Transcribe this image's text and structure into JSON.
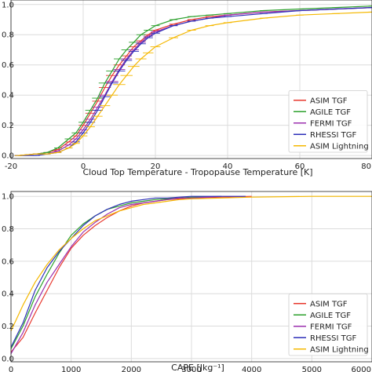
{
  "chart_data": [
    {
      "type": "line",
      "title": "",
      "xlabel": "Cloud Top Temperature - Tropopause Temperature [K]",
      "ylabel": "",
      "xlim": [
        -20,
        80
      ],
      "ylim": [
        -0.02,
        1.03
      ],
      "xticks": [
        "-20",
        "0",
        "20",
        "40",
        "60",
        "80"
      ],
      "xtick_values": [
        -20,
        0,
        20,
        40,
        60,
        80
      ],
      "yticks": [
        "0.0",
        "0.2",
        "0.4",
        "0.6",
        "0.8",
        "1.0"
      ],
      "ytick_values": [
        0,
        0.2,
        0.4,
        0.6,
        0.8,
        1.0
      ],
      "grid": true,
      "legend_position": "lower-right",
      "error_bars": true,
      "series": [
        {
          "name": "ASIM TGF",
          "color": "#e8392e",
          "x": [
            -18,
            -13,
            -10,
            -7,
            -4,
            -2,
            0,
            2,
            4,
            6,
            8,
            10,
            12,
            14,
            16,
            18,
            20,
            25,
            30,
            35,
            40,
            50,
            60,
            70,
            80
          ],
          "y": [
            0.0,
            0.01,
            0.02,
            0.04,
            0.09,
            0.13,
            0.2,
            0.28,
            0.36,
            0.45,
            0.53,
            0.6,
            0.66,
            0.72,
            0.76,
            0.8,
            0.83,
            0.87,
            0.9,
            0.92,
            0.93,
            0.95,
            0.96,
            0.97,
            0.98
          ]
        },
        {
          "name": "AGILE TGF",
          "color": "#2ca02c",
          "x": [
            -18,
            -13,
            -10,
            -7,
            -4,
            -2,
            0,
            2,
            4,
            6,
            8,
            10,
            12,
            14,
            16,
            18,
            20,
            25,
            30,
            35,
            40,
            50,
            60,
            70,
            80
          ],
          "y": [
            0.0,
            0.01,
            0.02,
            0.05,
            0.11,
            0.15,
            0.22,
            0.3,
            0.38,
            0.48,
            0.56,
            0.64,
            0.7,
            0.75,
            0.8,
            0.83,
            0.86,
            0.9,
            0.92,
            0.93,
            0.94,
            0.96,
            0.97,
            0.98,
            0.99
          ]
        },
        {
          "name": "FERMI TGF",
          "color": "#9b2fae",
          "x": [
            -18,
            -13,
            -10,
            -7,
            -4,
            -2,
            0,
            2,
            4,
            6,
            8,
            10,
            12,
            14,
            16,
            18,
            20,
            25,
            30,
            35,
            40,
            50,
            60,
            70,
            80
          ],
          "y": [
            0.0,
            0.01,
            0.01,
            0.03,
            0.07,
            0.11,
            0.17,
            0.24,
            0.32,
            0.4,
            0.49,
            0.57,
            0.64,
            0.7,
            0.75,
            0.79,
            0.82,
            0.86,
            0.89,
            0.91,
            0.93,
            0.95,
            0.96,
            0.97,
            0.98
          ]
        },
        {
          "name": "RHESSI TGF",
          "color": "#2d2fb8",
          "x": [
            -18,
            -13,
            -10,
            -7,
            -4,
            -2,
            0,
            2,
            4,
            6,
            8,
            10,
            12,
            14,
            16,
            18,
            20,
            25,
            30,
            35,
            40,
            50,
            60,
            70,
            80
          ],
          "y": [
            0.0,
            0.0,
            0.01,
            0.02,
            0.05,
            0.09,
            0.15,
            0.22,
            0.3,
            0.39,
            0.48,
            0.56,
            0.63,
            0.69,
            0.74,
            0.78,
            0.81,
            0.86,
            0.89,
            0.91,
            0.92,
            0.94,
            0.96,
            0.97,
            0.98
          ]
        },
        {
          "name": "ASIM Lightning",
          "color": "#f5b800",
          "x": [
            -18,
            -13,
            -10,
            -7,
            -4,
            -2,
            0,
            2,
            4,
            6,
            8,
            10,
            12,
            14,
            16,
            18,
            20,
            25,
            30,
            35,
            40,
            50,
            60,
            70,
            80
          ],
          "y": [
            0.0,
            0.01,
            0.01,
            0.02,
            0.05,
            0.08,
            0.13,
            0.19,
            0.26,
            0.33,
            0.4,
            0.47,
            0.53,
            0.59,
            0.64,
            0.68,
            0.72,
            0.78,
            0.83,
            0.86,
            0.88,
            0.91,
            0.93,
            0.94,
            0.95
          ]
        }
      ]
    },
    {
      "type": "line",
      "title": "",
      "xlabel": "CAPE [Jkg⁻¹]",
      "ylabel": "",
      "xlim": [
        0,
        6000
      ],
      "ylim": [
        -0.02,
        1.03
      ],
      "xticks": [
        "0",
        "1000",
        "2000",
        "3000",
        "4000",
        "5000",
        "6000"
      ],
      "xtick_values": [
        0,
        1000,
        2000,
        3000,
        4000,
        5000,
        6000
      ],
      "yticks": [
        "0.0",
        "0.2",
        "0.4",
        "0.6",
        "0.8",
        "1.0"
      ],
      "ytick_values": [
        0,
        0.2,
        0.4,
        0.6,
        0.8,
        1.0
      ],
      "grid": true,
      "legend_position": "lower-right",
      "series": [
        {
          "name": "ASIM TGF",
          "color": "#e8392e",
          "x": [
            0,
            200,
            400,
            600,
            800,
            1000,
            1200,
            1400,
            1600,
            1800,
            2000,
            2200,
            2400,
            2600,
            2800,
            3000,
            3500,
            4000
          ],
          "y": [
            0.04,
            0.13,
            0.28,
            0.42,
            0.56,
            0.68,
            0.76,
            0.82,
            0.87,
            0.91,
            0.94,
            0.96,
            0.97,
            0.98,
            0.985,
            0.99,
            0.995,
            1.0
          ]
        },
        {
          "name": "AGILE TGF",
          "color": "#2ca02c",
          "x": [
            0,
            200,
            400,
            600,
            800,
            1000,
            1200,
            1400,
            1600,
            1800,
            2000,
            2200,
            2400,
            2600,
            2800,
            3000,
            3500
          ],
          "y": [
            0.06,
            0.2,
            0.38,
            0.52,
            0.65,
            0.76,
            0.83,
            0.88,
            0.92,
            0.94,
            0.96,
            0.97,
            0.98,
            0.985,
            0.99,
            0.995,
            1.0
          ]
        },
        {
          "name": "FERMI TGF",
          "color": "#9b2fae",
          "x": [
            0,
            200,
            400,
            600,
            800,
            1000,
            1200,
            1400,
            1600,
            1800,
            2000,
            2200,
            2400,
            2600,
            2800,
            3000,
            3500
          ],
          "y": [
            0.03,
            0.16,
            0.33,
            0.47,
            0.58,
            0.69,
            0.78,
            0.84,
            0.89,
            0.93,
            0.95,
            0.96,
            0.97,
            0.98,
            0.99,
            0.99,
            1.0
          ]
        },
        {
          "name": "RHESSI TGF",
          "color": "#2d2fb8",
          "x": [
            0,
            200,
            400,
            600,
            800,
            1000,
            1200,
            1400,
            1600,
            1800,
            2000,
            2200,
            2400,
            2600,
            2800,
            3000,
            3500,
            3900
          ],
          "y": [
            0.07,
            0.22,
            0.42,
            0.56,
            0.66,
            0.74,
            0.82,
            0.88,
            0.92,
            0.95,
            0.97,
            0.98,
            0.99,
            0.99,
            0.995,
            1.0,
            1.0,
            1.0
          ]
        },
        {
          "name": "ASIM Lightning",
          "color": "#f5b800",
          "x": [
            0,
            200,
            400,
            600,
            800,
            1000,
            1200,
            1400,
            1600,
            1800,
            2000,
            2200,
            2400,
            2600,
            2800,
            3000,
            3500,
            4000,
            5000,
            6000
          ],
          "y": [
            0.17,
            0.33,
            0.47,
            0.58,
            0.67,
            0.74,
            0.8,
            0.85,
            0.88,
            0.91,
            0.93,
            0.95,
            0.96,
            0.97,
            0.98,
            0.985,
            0.99,
            0.995,
            1.0,
            1.0
          ]
        }
      ]
    }
  ]
}
